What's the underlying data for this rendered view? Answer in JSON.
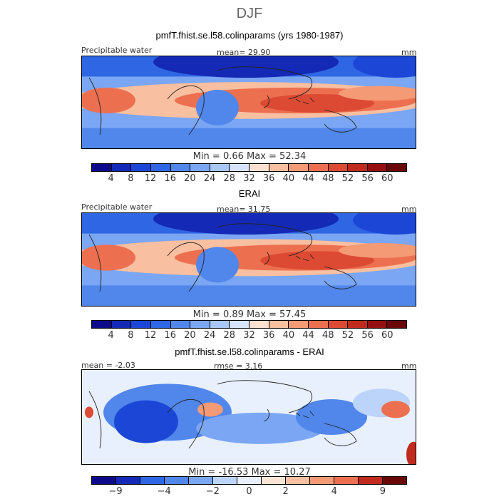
{
  "season": "DJF",
  "panels": [
    {
      "title": "pmfT.fhist.se.l58.colinparams (yrs 1980-1987)",
      "left_label": "Precipitable water",
      "center_label": "mean=  29.90",
      "units": "mm",
      "stats": "Min =   0.66  Max =  52.34",
      "colorbar": {
        "type": "absolute",
        "tick_labels": [
          "4",
          "8",
          "12",
          "16",
          "20",
          "24",
          "28",
          "32",
          "36",
          "40",
          "44",
          "48",
          "52",
          "56",
          "60"
        ],
        "colors": [
          "#0c0a8a",
          "#1429b5",
          "#1c47d6",
          "#2f66e4",
          "#5186eb",
          "#7aa6f3",
          "#a8c6f8",
          "#d6e4fb",
          "#fde0d0",
          "#f8bfa0",
          "#f49a75",
          "#ec7050",
          "#dc4a33",
          "#c02b1e",
          "#960f10",
          "#6a0709"
        ]
      }
    },
    {
      "title": "ERAI",
      "left_label": "Precipitable water",
      "center_label": "mean=  31.75",
      "units": "mm",
      "stats": "Min =   0.89  Max =  57.45",
      "colorbar": {
        "type": "absolute",
        "tick_labels": [
          "4",
          "8",
          "12",
          "16",
          "20",
          "24",
          "28",
          "32",
          "36",
          "40",
          "44",
          "48",
          "52",
          "56",
          "60"
        ],
        "colors": [
          "#0c0a8a",
          "#1429b5",
          "#1c47d6",
          "#2f66e4",
          "#5186eb",
          "#7aa6f3",
          "#a8c6f8",
          "#d6e4fb",
          "#fde0d0",
          "#f8bfa0",
          "#f49a75",
          "#ec7050",
          "#dc4a33",
          "#c02b1e",
          "#960f10",
          "#6a0709"
        ]
      }
    },
    {
      "title": "pmfT.fhist.se.l58.colinparams - ERAI",
      "left_label": "mean =  -2.03",
      "center_label": "rmse =   3.16",
      "units": "mm",
      "stats": "Min = -16.53  Max =  10.27",
      "colorbar": {
        "type": "difference",
        "tick_labels": [
          "-9",
          "-4",
          "-2",
          "0",
          "2",
          "4",
          "9"
        ],
        "colors": [
          "#0c0a8a",
          "#1429b5",
          "#2f66e4",
          "#5186eb",
          "#7aa6f3",
          "#bcd3fa",
          "#e8f0fd",
          "#fde5d6",
          "#f8bfa0",
          "#f49a75",
          "#ec7050",
          "#c02b1e",
          "#6a0709"
        ]
      }
    }
  ],
  "chart_data": [
    {
      "type": "heatmap",
      "title": "pmfT.fhist.se.l58.colinparams (yrs 1980-1987)",
      "variable": "Precipitable water",
      "units": "mm",
      "mean": 29.9,
      "min": 0.66,
      "max": 52.34,
      "colorbar_levels": [
        4,
        8,
        12,
        16,
        20,
        24,
        28,
        32,
        36,
        40,
        44,
        48,
        52,
        56,
        60
      ]
    },
    {
      "type": "heatmap",
      "title": "ERAI",
      "variable": "Precipitable water",
      "units": "mm",
      "mean": 31.75,
      "min": 0.89,
      "max": 57.45,
      "colorbar_levels": [
        4,
        8,
        12,
        16,
        20,
        24,
        28,
        32,
        36,
        40,
        44,
        48,
        52,
        56,
        60
      ]
    },
    {
      "type": "heatmap",
      "title": "pmfT.fhist.se.l58.colinparams - ERAI",
      "units": "mm",
      "mean": -2.03,
      "rmse": 3.16,
      "min": -16.53,
      "max": 10.27,
      "colorbar_levels": [
        -9,
        -4,
        -2,
        0,
        2,
        4,
        9
      ]
    }
  ]
}
